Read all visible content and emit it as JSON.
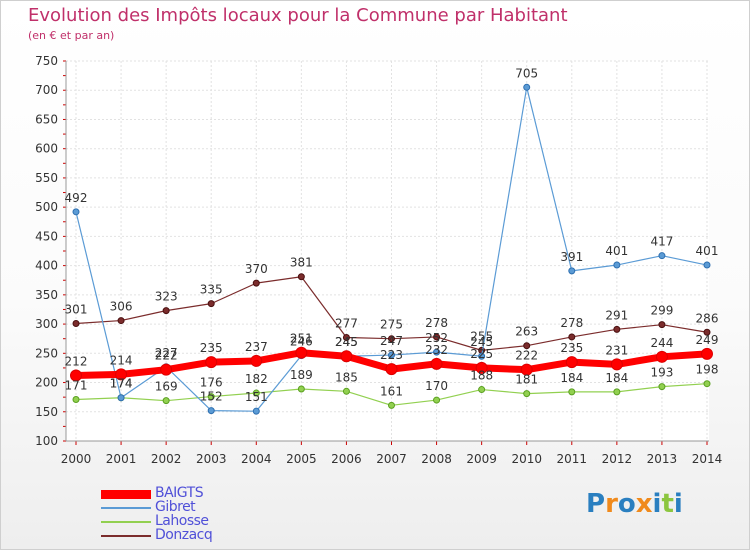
{
  "title": "Evolution des Impôts locaux pour la Commune par Habitant",
  "subtitle": "(en € et par an)",
  "logo": {
    "text": "Proxiti",
    "letters": [
      {
        "ch": "P",
        "color": "#2a7fc0"
      },
      {
        "ch": "r",
        "color": "#f08a1c"
      },
      {
        "ch": "o",
        "color": "#2a7fc0"
      },
      {
        "ch": "x",
        "color": "#f08a1c"
      },
      {
        "ch": "i",
        "color": "#2a7fc0"
      },
      {
        "ch": "t",
        "color": "#8cc63f"
      },
      {
        "ch": "i",
        "color": "#2a7fc0"
      }
    ]
  },
  "chart_data": {
    "type": "line",
    "title": "Evolution des Impôts locaux pour la Commune par Habitant",
    "subtitle": "(en € et par an)",
    "x": [
      "2000",
      "2001",
      "2002",
      "2003",
      "2004",
      "2005",
      "2006",
      "2007",
      "2008",
      "2009",
      "2010",
      "2011",
      "2012",
      "2013",
      "2014"
    ],
    "ylim": [
      100,
      750
    ],
    "yticks": [
      100,
      150,
      200,
      250,
      300,
      350,
      400,
      450,
      500,
      550,
      600,
      650,
      700,
      750
    ],
    "grid": true,
    "legend_position": "bottom-left",
    "series": [
      {
        "name": "BAIGTS",
        "color": "#ff0000",
        "values": [
          212,
          214,
          222,
          235,
          237,
          251,
          245,
          223,
          232,
          225,
          222,
          235,
          231,
          244,
          249
        ]
      },
      {
        "name": "Gibret",
        "color": "#5b9bd5",
        "values": [
          492,
          174,
          227,
          152,
          151,
          246,
          245,
          247,
          252,
          245,
          705,
          391,
          401,
          417,
          401
        ]
      },
      {
        "name": "Lahosse",
        "color": "#92d050",
        "values": [
          171,
          174,
          169,
          176,
          182,
          189,
          185,
          161,
          170,
          188,
          181,
          184,
          184,
          193,
          198
        ]
      },
      {
        "name": "Donzacq",
        "color": "#7b2c2c",
        "values": [
          301,
          306,
          323,
          335,
          370,
          381,
          277,
          275,
          278,
          255,
          263,
          278,
          291,
          299,
          286
        ]
      }
    ]
  }
}
